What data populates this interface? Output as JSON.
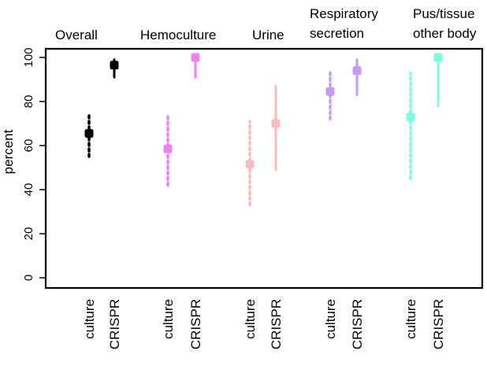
{
  "chart_data": {
    "type": "scatter",
    "title": "",
    "xlabel": "",
    "ylabel": "percent",
    "ylim": [
      0,
      105
    ],
    "yticks": [
      0,
      20,
      40,
      60,
      80,
      100
    ],
    "grid": false,
    "groups": [
      {
        "title_lines": [
          "Overall"
        ],
        "color": "#000000"
      },
      {
        "title_lines": [
          "Hemoculture"
        ],
        "color": "#ee82ee"
      },
      {
        "title_lines": [
          "Urine"
        ],
        "color": "#f9bcbc"
      },
      {
        "title_lines": [
          "Respiratory",
          "secretion"
        ],
        "color": "#c69af5"
      },
      {
        "title_lines": [
          "Pus/tissue",
          "other body"
        ],
        "color": "#7cfce0"
      }
    ],
    "method_labels": [
      "culture",
      "CRISPR"
    ],
    "points": [
      {
        "group": 0,
        "method": "culture",
        "value": 65.5,
        "ci_low": 55,
        "ci_high": 75
      },
      {
        "group": 0,
        "method": "CRISPR",
        "value": 96.5,
        "ci_low": 91,
        "ci_high": 99
      },
      {
        "group": 1,
        "method": "culture",
        "value": 58.5,
        "ci_low": 42,
        "ci_high": 74
      },
      {
        "group": 1,
        "method": "CRISPR",
        "value": 100,
        "ci_low": 91,
        "ci_high": 100
      },
      {
        "group": 2,
        "method": "culture",
        "value": 51.5,
        "ci_low": 33,
        "ci_high": 71
      },
      {
        "group": 2,
        "method": "CRISPR",
        "value": 70,
        "ci_low": 49,
        "ci_high": 87
      },
      {
        "group": 3,
        "method": "culture",
        "value": 84.5,
        "ci_low": 72,
        "ci_high": 94
      },
      {
        "group": 3,
        "method": "CRISPR",
        "value": 94,
        "ci_low": 83,
        "ci_high": 99
      },
      {
        "group": 4,
        "method": "culture",
        "value": 73,
        "ci_low": 45,
        "ci_high": 93
      },
      {
        "group": 4,
        "method": "CRISPR",
        "value": 100,
        "ci_low": 78,
        "ci_high": 100
      }
    ]
  }
}
